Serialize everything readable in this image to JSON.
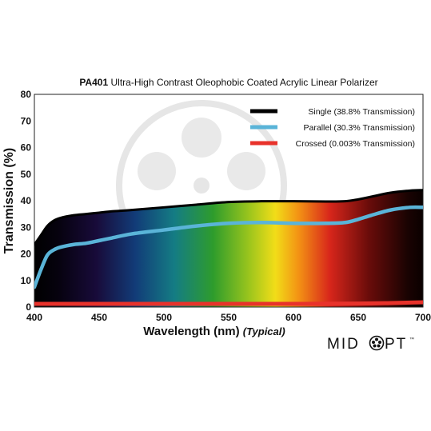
{
  "chart_data": {
    "type": "line",
    "title_bold": "PA401",
    "title_rest": " Ultra-High Contrast Oleophobic Coated Acrylic Linear Polarizer",
    "xlabel": "Wavelength (nm)",
    "xlabel_note": "(Typical)",
    "ylabel": "Transmission (%)",
    "xlim": [
      400,
      700
    ],
    "ylim": [
      0,
      80
    ],
    "xticks": [
      400,
      450,
      500,
      550,
      600,
      650,
      700
    ],
    "yticks": [
      0,
      10,
      20,
      30,
      40,
      50,
      60,
      70,
      80
    ],
    "legend_position": "top-right",
    "series": [
      {
        "name": "Single (38.8% Transmission)",
        "color": "#000000",
        "x": [
          400,
          405,
          410,
          415,
          420,
          430,
          440,
          450,
          460,
          475,
          500,
          525,
          550,
          575,
          600,
          625,
          640,
          650,
          660,
          675,
          690,
          700
        ],
        "y": [
          23.5,
          27,
          30.5,
          32.5,
          33.5,
          34.5,
          35,
          35.5,
          36,
          36.5,
          37.5,
          38.5,
          39.5,
          39.8,
          39.8,
          39.7,
          39.8,
          40.5,
          41.5,
          43,
          43.8,
          44
        ]
      },
      {
        "name": "Parallel (30.3% Transmission)",
        "color": "#5ab4d8",
        "x": [
          400,
          405,
          410,
          415,
          420,
          430,
          440,
          450,
          460,
          475,
          500,
          525,
          550,
          575,
          600,
          625,
          640,
          650,
          660,
          675,
          690,
          700
        ],
        "y": [
          7.5,
          14,
          19.5,
          21.5,
          22.5,
          23.5,
          24,
          25,
          26,
          27.5,
          29,
          30.5,
          31.5,
          31.8,
          31.5,
          31.5,
          31.8,
          33,
          34.5,
          36.5,
          37.5,
          37.5
        ]
      },
      {
        "name": "Crossed (0.003% Transmission)",
        "color": "#e8322b",
        "x": [
          400,
          450,
          500,
          550,
          600,
          650,
          675,
          700
        ],
        "y": [
          1.2,
          1.2,
          1.2,
          1.2,
          1.2,
          1.3,
          1.5,
          1.8
        ]
      }
    ]
  },
  "logo": {
    "text_left": "MID",
    "text_right": "PT",
    "mark": "™"
  }
}
